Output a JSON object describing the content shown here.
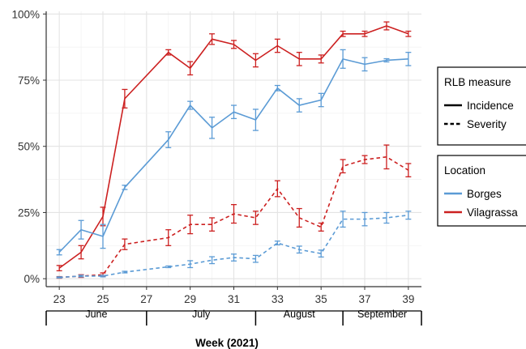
{
  "chart_data": {
    "type": "line",
    "xlabel": "Week (2021)",
    "x": [
      23,
      24,
      25,
      26,
      28,
      29,
      30,
      31,
      32,
      33,
      34,
      35,
      36,
      37,
      38,
      39
    ],
    "x_ticks": [
      23,
      25,
      27,
      29,
      31,
      33,
      35,
      37,
      39
    ],
    "xlim": [
      22.4,
      39.6
    ],
    "ylim": [
      -3,
      101
    ],
    "y_ticks": [
      0,
      25,
      50,
      75,
      100
    ],
    "y_tick_labels": [
      "0%",
      "25%",
      "50%",
      "75%",
      "100%"
    ],
    "months": [
      {
        "label": "June",
        "start": 22.4,
        "end": 27.0
      },
      {
        "label": "July",
        "start": 27.0,
        "end": 32.0
      },
      {
        "label": "August",
        "start": 32.0,
        "end": 36.0
      },
      {
        "label": "September",
        "start": 36.0,
        "end": 39.6
      }
    ],
    "grid": true,
    "series": [
      {
        "location": "Vilagrassa",
        "measure": "Incidence",
        "color": "#cc2020",
        "dash": "solid",
        "values": [
          4,
          10,
          23.5,
          68,
          85.5,
          79.5,
          90.5,
          88.5,
          82.5,
          88,
          83,
          83,
          92.5,
          92.5,
          95.5,
          92.5
        ],
        "errors": [
          1,
          2.5,
          3.5,
          3.5,
          1,
          2.5,
          2,
          1.5,
          2.5,
          2.5,
          2.5,
          1.5,
          1,
          1,
          1.5,
          1
        ]
      },
      {
        "location": "Borges",
        "measure": "Incidence",
        "color": "#5b9bd5",
        "dash": "solid",
        "values": [
          10,
          18.5,
          16,
          34.5,
          52.5,
          65.5,
          57,
          63,
          60,
          72,
          65.5,
          67.5,
          83,
          81,
          82.5,
          83
        ],
        "errors": [
          1,
          3.5,
          4.5,
          0.8,
          3,
          1.5,
          4,
          2.5,
          4,
          1,
          2.5,
          2.5,
          3.5,
          2.5,
          0.6,
          2.5
        ]
      },
      {
        "location": "Vilagrassa",
        "measure": "Severity",
        "color": "#cc2020",
        "dash": "dashed",
        "values": [
          0.5,
          1,
          1.5,
          13,
          15.5,
          20.5,
          20.5,
          24.5,
          23,
          34,
          23,
          19.5,
          42.5,
          45,
          46,
          41
        ],
        "errors": [
          0.3,
          0.5,
          0.7,
          2,
          3,
          3.5,
          2.5,
          3.5,
          2.5,
          3,
          3.5,
          1.5,
          2.5,
          1.5,
          4.5,
          2.5
        ]
      },
      {
        "location": "Borges",
        "measure": "Severity",
        "color": "#5b9bd5",
        "dash": "dashed",
        "values": [
          0.5,
          1,
          1,
          2.5,
          4.5,
          5.5,
          7,
          8,
          7.5,
          13.5,
          11,
          9.5,
          22.5,
          22.5,
          23,
          24
        ],
        "errors": [
          0.2,
          0.3,
          0.3,
          0.3,
          0.3,
          1.3,
          1.3,
          1.3,
          1.3,
          0.7,
          1.3,
          1.3,
          3,
          2.5,
          2,
          1.5
        ]
      }
    ],
    "legends": [
      {
        "title": "RLB measure",
        "entries": [
          {
            "label": "Incidence",
            "dash": "solid",
            "color": "#000000"
          },
          {
            "label": "Severity",
            "dash": "dashed",
            "color": "#000000"
          }
        ]
      },
      {
        "title": "Location",
        "entries": [
          {
            "label": "Borges",
            "dash": "solid",
            "color": "#5b9bd5"
          },
          {
            "label": "Vilagrassa",
            "dash": "solid",
            "color": "#cc2020"
          }
        ]
      }
    ],
    "legend_position": "right"
  }
}
